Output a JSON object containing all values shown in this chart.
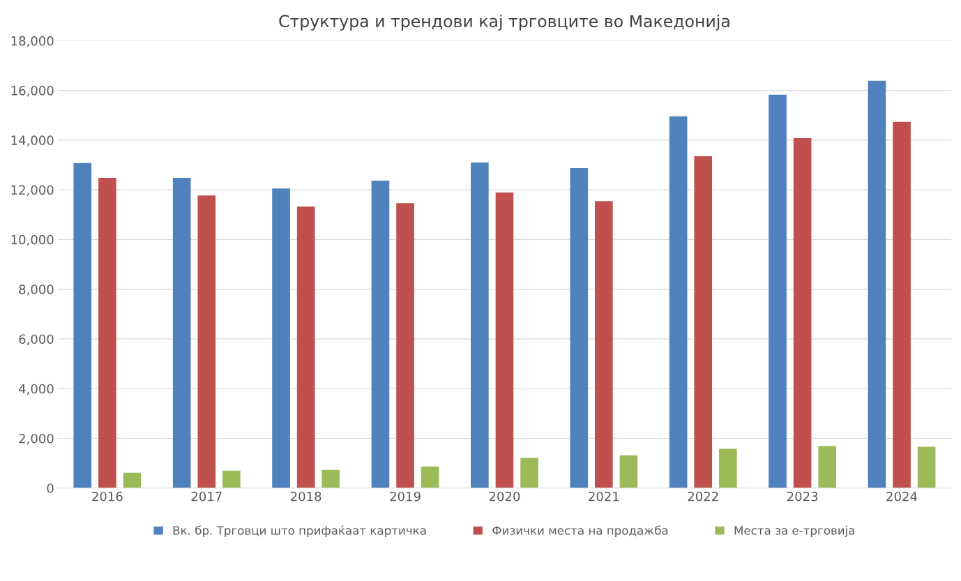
{
  "chart_data": {
    "type": "bar",
    "title": "Структура и трендови кај трговците во Македонија",
    "categories": [
      "2016",
      "2017",
      "2018",
      "2019",
      "2020",
      "2021",
      "2022",
      "2023",
      "2024"
    ],
    "series": [
      {
        "name": "Вк. бр. Трговци што прифаќаат картичка",
        "color": "#4f81bd",
        "values": [
          13080,
          12480,
          12050,
          12370,
          13100,
          12870,
          14960,
          15830,
          16390
        ]
      },
      {
        "name": "Физички места на продажба",
        "color": "#c0504d",
        "values": [
          12480,
          11770,
          11320,
          11460,
          11890,
          11550,
          13350,
          14080,
          14730
        ]
      },
      {
        "name": "Места за е-трговија",
        "color": "#9bbb59",
        "values": [
          620,
          700,
          730,
          870,
          1210,
          1320,
          1580,
          1690,
          1660
        ]
      }
    ],
    "ylim": [
      0,
      18000
    ],
    "yticks": [
      {
        "value": 0,
        "label": "0"
      },
      {
        "value": 2000,
        "label": "2,000"
      },
      {
        "value": 4000,
        "label": "4,000"
      },
      {
        "value": 6000,
        "label": "6,000"
      },
      {
        "value": 8000,
        "label": "8,000"
      },
      {
        "value": 10000,
        "label": "10,000"
      },
      {
        "value": 12000,
        "label": "12,000"
      },
      {
        "value": 14000,
        "label": "14,000"
      },
      {
        "value": 16000,
        "label": "16,000"
      },
      {
        "value": 18000,
        "label": "18,000"
      }
    ],
    "grid": "y",
    "legend": "bottom"
  }
}
